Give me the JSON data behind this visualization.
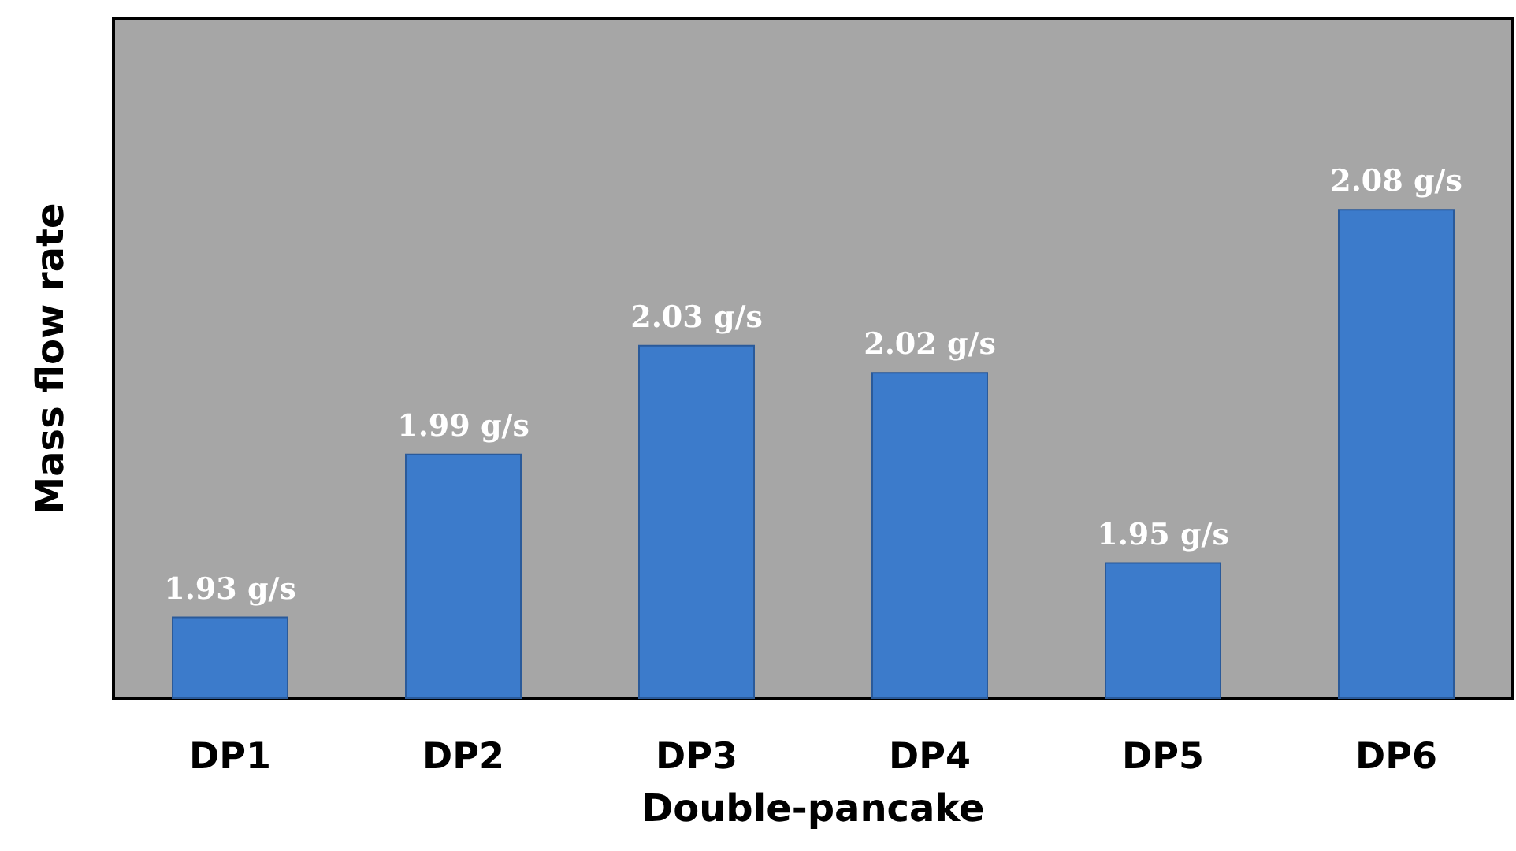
{
  "chart_data": {
    "type": "bar",
    "xlabel": "Double-pancake",
    "ylabel": "Mass flow rate",
    "categories": [
      "DP1",
      "DP2",
      "DP3",
      "DP4",
      "DP5",
      "DP6"
    ],
    "values": [
      1.93,
      1.99,
      2.03,
      2.02,
      1.95,
      2.08
    ],
    "value_labels": [
      "1.93 g/s",
      "1.99 g/s",
      "2.03 g/s",
      "2.02 g/s",
      "1.95 g/s",
      "2.08 g/s"
    ],
    "color": "#3c7bcb",
    "ylim": [
      1.9,
      2.15
    ],
    "tick_labels": "x"
  }
}
